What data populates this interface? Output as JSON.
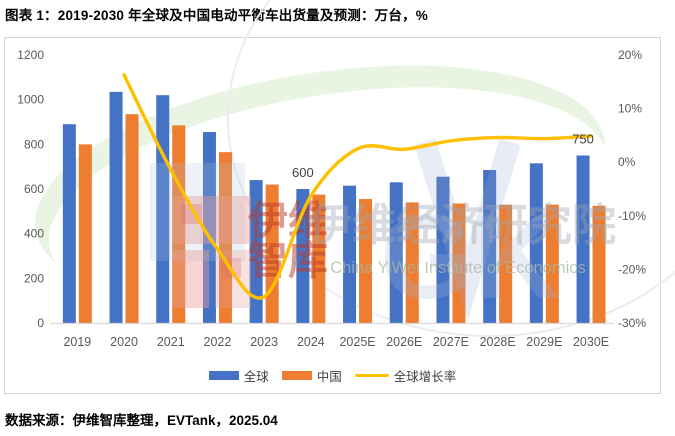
{
  "title": "图表 1：2019-2030 年全球及中国电动平衡车出货量及预测：万台，%",
  "source": "数据来源：伊维智库整理，EVTank，2025.04",
  "watermark": {
    "seal_line1": "伊维",
    "seal_line2": "智库",
    "org_cn": "伊维经济研究院",
    "org_en": "China YiWei Institute of Economics"
  },
  "chart_data": {
    "type": "combo-bar-line",
    "title": "",
    "categories": [
      "2019",
      "2020",
      "2021",
      "2022",
      "2023",
      "2024",
      "2025E",
      "2026E",
      "2027E",
      "2028E",
      "2029E",
      "2030E"
    ],
    "series": [
      {
        "name": "全球",
        "type": "bar",
        "axis": "left",
        "color": "#4472C4",
        "values": [
          890,
          1035,
          1020,
          855,
          640,
          600,
          615,
          630,
          655,
          685,
          715,
          750
        ]
      },
      {
        "name": "中国",
        "type": "bar",
        "axis": "left",
        "color": "#ED7D31",
        "values": [
          800,
          935,
          885,
          765,
          620,
          575,
          555,
          540,
          535,
          530,
          530,
          525
        ]
      },
      {
        "name": "全球增长率",
        "type": "line",
        "axis": "right",
        "color": "#FFC000",
        "values": [
          null,
          16.3,
          -1.4,
          -16.2,
          -25.1,
          -6.3,
          2.5,
          2.4,
          4.0,
          4.6,
          4.4,
          4.9
        ]
      }
    ],
    "data_labels": [
      {
        "series": 0,
        "index": 5,
        "text": "600"
      },
      {
        "series": 0,
        "index": 11,
        "text": "750"
      }
    ],
    "left_axis": {
      "min": 0,
      "max": 1200,
      "ticks": [
        "0",
        "200",
        "400",
        "600",
        "800",
        "1000",
        "1200"
      ]
    },
    "right_axis": {
      "min": -30,
      "max": 20,
      "ticks": [
        "-30%",
        "-20%",
        "-10%",
        "0%",
        "10%",
        "20%"
      ]
    },
    "xlabel": "",
    "ylabel": "",
    "grid": false,
    "legend_position": "bottom"
  }
}
